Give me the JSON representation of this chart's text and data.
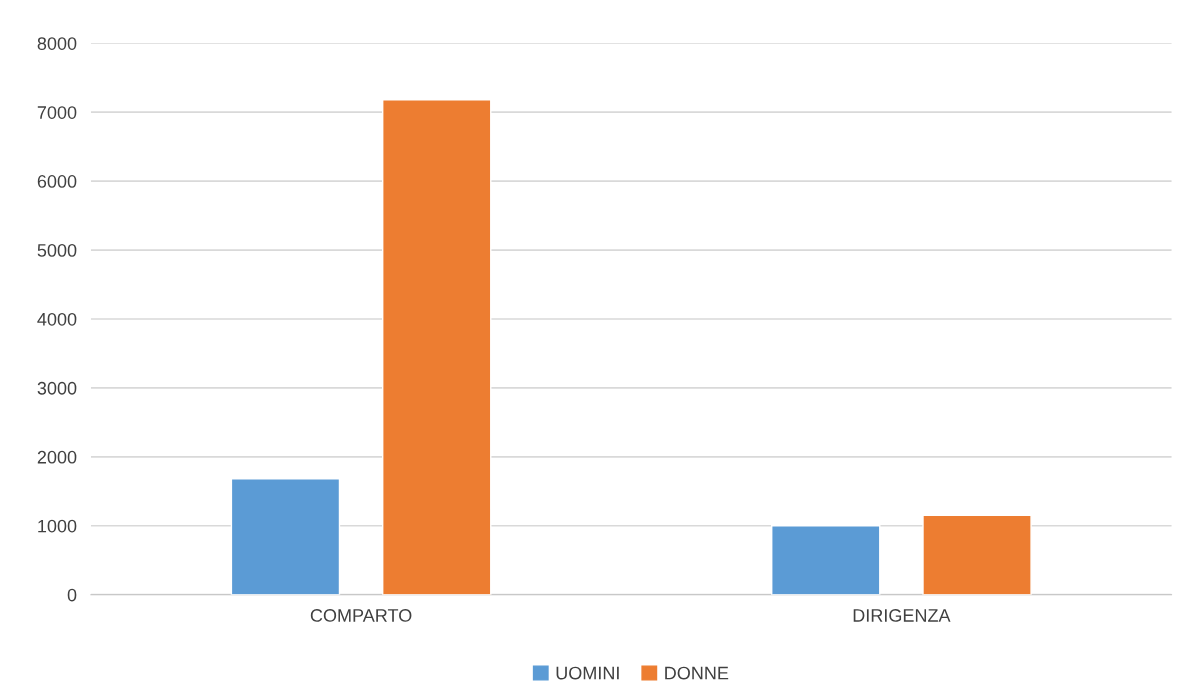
{
  "chart_data": {
    "type": "bar",
    "categories": [
      "COMPARTO",
      "DIRIGENZA"
    ],
    "series": [
      {
        "name": "UOMINI",
        "color": "#5b9bd5",
        "values": [
          1680,
          1000
        ]
      },
      {
        "name": "DONNE",
        "color": "#ed7d31",
        "values": [
          7180,
          1150
        ]
      }
    ],
    "ylim": [
      0,
      8000
    ],
    "yticks": [
      0,
      1000,
      2000,
      3000,
      4000,
      5000,
      6000,
      7000,
      8000
    ],
    "grid": "y",
    "legend": "bottom"
  }
}
